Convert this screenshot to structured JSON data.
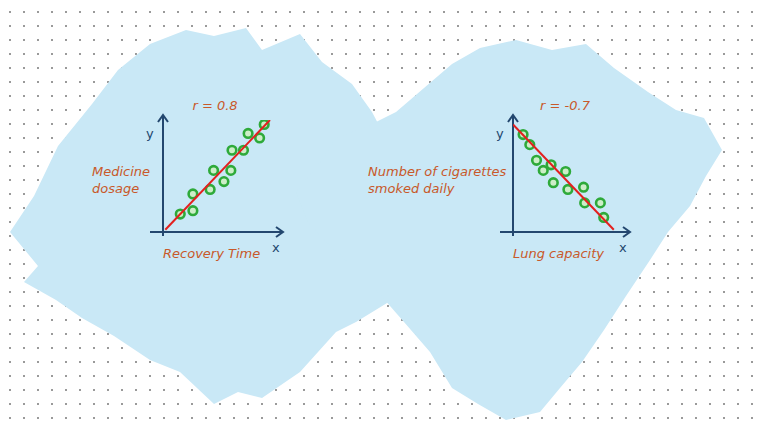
{
  "chart_data": [
    {
      "type": "scatter",
      "annotations": [
        "r = 0.8"
      ],
      "x_label": "Recovery Time",
      "y_label": "Medicine dosage",
      "x_axis_name": "x",
      "y_axis_name": "y",
      "xlim": [
        0,
        10
      ],
      "ylim": [
        0,
        10
      ],
      "xticks": [],
      "yticks": [],
      "tick_labels": false,
      "grid": false,
      "series": [
        {
          "type": "scatter",
          "color": "#2eaa3a",
          "marker": "circle",
          "x": [
            1.5,
            2.6,
            2.6,
            4.1,
            4.4,
            5.3,
            5.9,
            6.0,
            7.0,
            7.4,
            8.4,
            8.8
          ],
          "values": [
            1.6,
            1.9,
            3.4,
            3.8,
            5.5,
            4.5,
            5.5,
            7.3,
            7.3,
            8.8,
            8.4,
            9.6
          ]
        },
        {
          "type": "line",
          "color": "#e3201f",
          "line_style": "solid",
          "x": [
            0.2,
            9.3
          ],
          "values": [
            0.2,
            10.0
          ]
        }
      ]
    },
    {
      "type": "scatter",
      "annotations": [
        "r = -0.7"
      ],
      "x_label": "Lung capacity",
      "y_label": "Number of cigarettes smoked daily",
      "x_axis_name": "x",
      "y_axis_name": "y",
      "xlim": [
        0,
        10
      ],
      "ylim": [
        0,
        10
      ],
      "xticks": [],
      "yticks": [],
      "tick_labels": false,
      "grid": false,
      "series": [
        {
          "type": "scatter",
          "color": "#2eaa3a",
          "marker": "circle",
          "x": [
            0.9,
            1.5,
            2.1,
            2.7,
            3.4,
            3.6,
            4.7,
            4.9,
            6.3,
            6.4,
            7.8,
            8.1
          ],
          "values": [
            8.7,
            7.8,
            6.4,
            5.5,
            6.0,
            4.4,
            5.4,
            3.8,
            4.0,
            2.6,
            2.6,
            1.3
          ]
        },
        {
          "type": "line",
          "color": "#e3201f",
          "line_style": "solid",
          "x": [
            0.0,
            9.0
          ],
          "values": [
            9.6,
            0.2
          ]
        }
      ]
    }
  ]
}
